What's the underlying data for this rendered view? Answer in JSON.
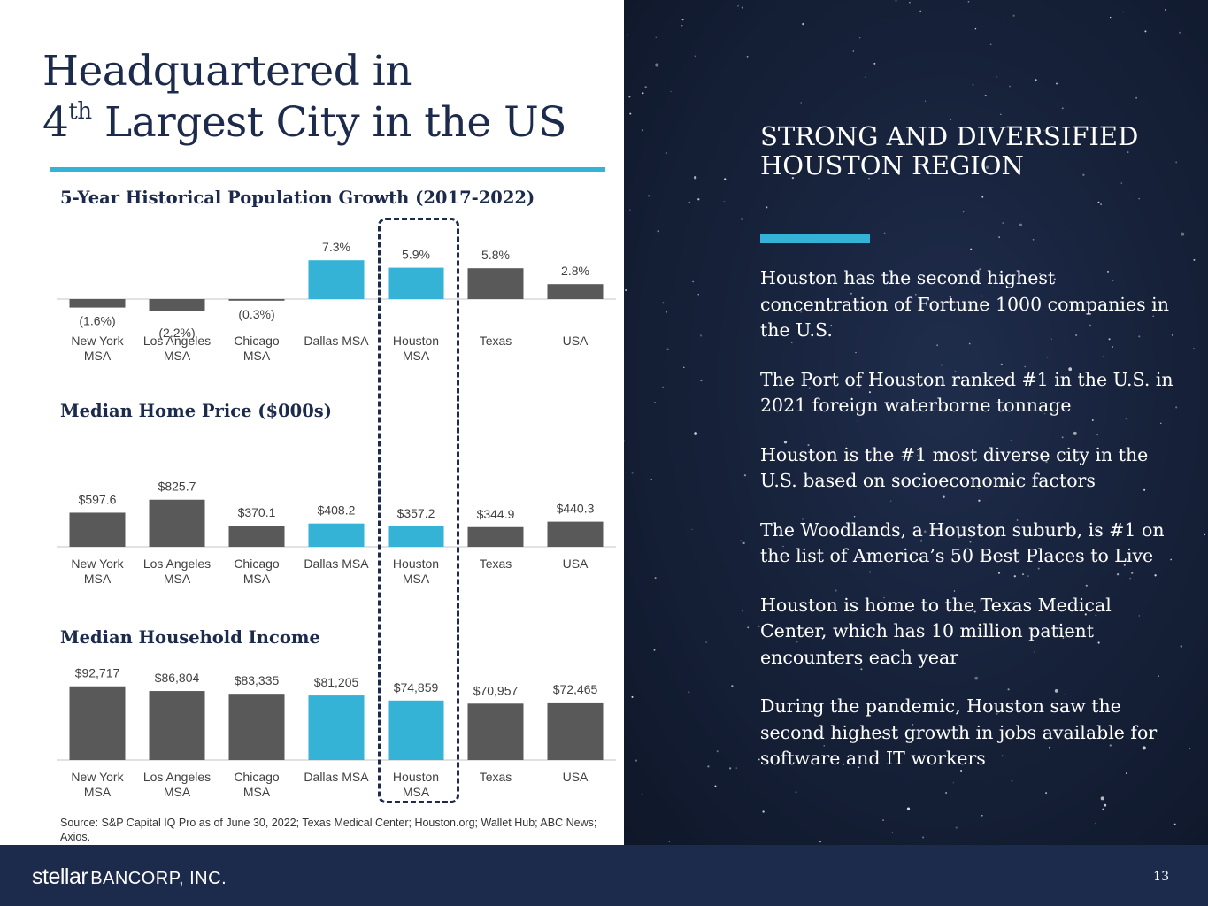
{
  "slide": {
    "title_line1": "Headquartered in",
    "title_num": "4",
    "title_sup": "th",
    "title_rest": " Largest City in the US",
    "source": "Source: S&P Capital IQ Pro as of June 30, 2022; Texas Medical Center; Houston.org; Wallet Hub; ABC News; Axios.",
    "page_number": "13"
  },
  "sidebar": {
    "heading": "STRONG AND DIVERSIFIED HOUSTON REGION",
    "bullets": [
      "Houston has the second highest concentration of Fortune 1000 companies in the U.S.",
      "The Port of Houston ranked #1 in the U.S. in 2021 foreign waterborne tonnage",
      "Houston is the #1 most diverse city in the U.S. based on socioeconomic factors",
      "The Woodlands, a Houston suburb, is #1 on the list of America’s 50 Best Places to Live",
      "Houston is home to the Texas Medical Center, which has 10 million patient encounters each year",
      "During the pandemic, Houston saw the second highest growth in jobs available for software and IT workers"
    ]
  },
  "footer": {
    "logo_word": "stellar",
    "logo_rest": "BANCORP, INC."
  },
  "colors": {
    "navy": "#1c2a4c",
    "accent": "#35b3d6",
    "bar_gray": "#595959"
  },
  "chart_data": [
    {
      "type": "bar",
      "title": "5-Year Historical Population Growth (2017-2022)",
      "categories": [
        [
          "New York",
          "MSA"
        ],
        [
          "Los Angeles",
          "MSA"
        ],
        [
          "Chicago",
          "MSA"
        ],
        [
          "Dallas MSA"
        ],
        [
          "Houston",
          "MSA"
        ],
        [
          "Texas"
        ],
        [
          "USA"
        ]
      ],
      "values": [
        -1.6,
        -2.2,
        -0.3,
        7.3,
        5.9,
        5.8,
        2.8
      ],
      "labels": [
        "(1.6%)",
        "(2.2%)",
        "(0.3%)",
        "7.3%",
        "5.9%",
        "5.8%",
        "2.8%"
      ],
      "highlight": [
        false,
        false,
        false,
        true,
        true,
        false,
        false
      ],
      "units": "%"
    },
    {
      "type": "bar",
      "title": "Median Home Price ($000s)",
      "categories": [
        [
          "New York",
          "MSA"
        ],
        [
          "Los Angeles",
          "MSA"
        ],
        [
          "Chicago",
          "MSA"
        ],
        [
          "Dallas MSA"
        ],
        [
          "Houston",
          "MSA"
        ],
        [
          "Texas"
        ],
        [
          "USA"
        ]
      ],
      "values": [
        597.6,
        825.7,
        370.1,
        408.2,
        357.2,
        344.9,
        440.3
      ],
      "labels": [
        "$597.6",
        "$825.7",
        "$370.1",
        "$408.2",
        "$357.2",
        "$344.9",
        "$440.3"
      ],
      "highlight": [
        false,
        false,
        false,
        true,
        true,
        false,
        false
      ],
      "units": "$000s"
    },
    {
      "type": "bar",
      "title": "Median Household Income",
      "categories": [
        [
          "New York",
          "MSA"
        ],
        [
          "Los Angeles",
          "MSA"
        ],
        [
          "Chicago",
          "MSA"
        ],
        [
          "Dallas MSA"
        ],
        [
          "Houston",
          "MSA"
        ],
        [
          "Texas"
        ],
        [
          "USA"
        ]
      ],
      "values": [
        92717,
        86804,
        83335,
        81205,
        74859,
        70957,
        72465
      ],
      "labels": [
        "$92,717",
        "$86,804",
        "$83,335",
        "$81,205",
        "$74,859",
        "$70,957",
        "$72,465"
      ],
      "highlight": [
        false,
        false,
        false,
        true,
        true,
        false,
        false
      ],
      "units": "$"
    }
  ]
}
